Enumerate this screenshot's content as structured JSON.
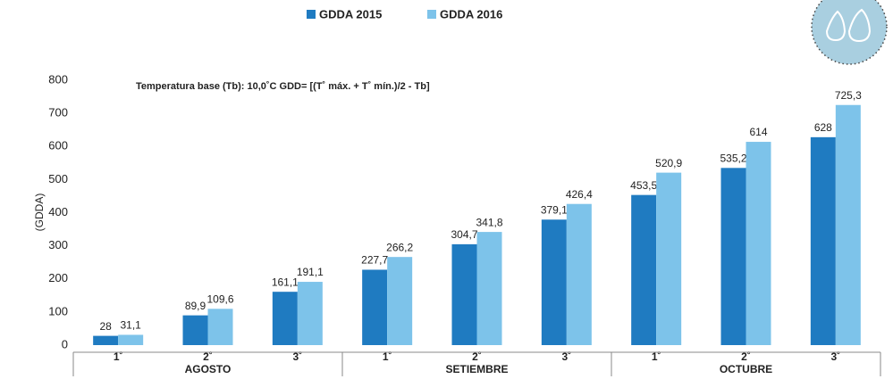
{
  "chart_data": {
    "type": "bar",
    "y_label": "(GDDA)",
    "annotation": "Temperatura base (Tb): 10,0˚C   GDD= [(T˚ máx. + T˚ mín.)/2 - Tb]",
    "categories": [
      "1˚",
      "2˚",
      "3˚",
      "1˚",
      "2˚",
      "3˚",
      "1˚",
      "2˚",
      "3˚"
    ],
    "group_labels": [
      "AGOSTO",
      "SETIEMBRE",
      "OCTUBRE"
    ],
    "series": [
      {
        "name": "GDDA 2015",
        "color": "#1f7bc1",
        "values": [
          28,
          89.9,
          161.1,
          227.7,
          304.7,
          379.1,
          453.5,
          535.2,
          628
        ],
        "value_labels": [
          "28",
          "89,9",
          "161,1",
          "227,7",
          "304,7",
          "379,1",
          "453,5",
          "535,2",
          "628"
        ]
      },
      {
        "name": "GDDA 2016",
        "color": "#7dc3ea",
        "values": [
          31.1,
          109.6,
          191.1,
          266.2,
          341.8,
          426.4,
          520.9,
          614,
          725.3
        ],
        "value_labels": [
          "31,1",
          "109,6",
          "191,1",
          "266,2",
          "341,8",
          "426,4",
          "520,9",
          "614",
          "725,3"
        ]
      }
    ],
    "ylim": [
      0,
      800
    ],
    "yticks": [
      0,
      100,
      200,
      300,
      400,
      500,
      600,
      700,
      800
    ],
    "grid": false
  }
}
